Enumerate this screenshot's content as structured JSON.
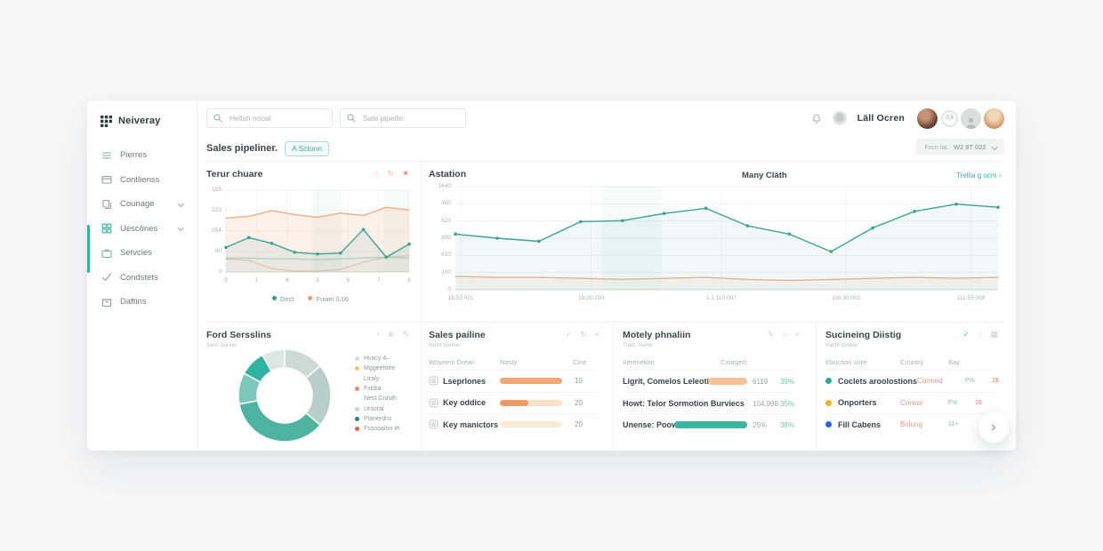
{
  "brand": {
    "name": "Neiveray"
  },
  "sidebar": {
    "items": [
      {
        "id": "pierres",
        "label": "Pierres",
        "icon": "menu",
        "chevron": false,
        "teal": false
      },
      {
        "id": "contlienss",
        "label": "Contlienss",
        "icon": "card",
        "chevron": false,
        "teal": false
      },
      {
        "id": "counage",
        "label": "Counage",
        "icon": "copy",
        "chevron": true,
        "teal": false
      },
      {
        "id": "uescones",
        "label": "Uescônes",
        "icon": "grid",
        "chevron": true,
        "teal": true
      },
      {
        "id": "setvcies",
        "label": "Setvcies",
        "icon": "briefcase",
        "chevron": false,
        "teal": false
      },
      {
        "id": "condstets",
        "label": "Condstets",
        "icon": "check",
        "chevron": false,
        "teal": false
      },
      {
        "id": "daftins",
        "label": "Daftins",
        "icon": "archive",
        "chevron": false,
        "teal": false
      }
    ]
  },
  "topbar": {
    "search_primary": "Hellsh nooal",
    "search_secondary": "Sale pipeilin",
    "user_name": "Läll Ocren",
    "meter_value": "0.9"
  },
  "header": {
    "title": "Sales pipeliner.",
    "badge": "A Sctonn",
    "filter_label": "Fern lat.",
    "filter_value": "W2 8T 022"
  },
  "cards": {
    "terur": {
      "title": "Terur chuare",
      "icons": [
        {
          "glyph": "○",
          "name": "circle-icon",
          "color": "#f3c1a0"
        },
        {
          "glyph": "↻",
          "name": "refresh-icon",
          "color": "#f3c1a0"
        },
        {
          "glyph": "☀",
          "name": "alert-icon",
          "color": "#e06a4f"
        }
      ],
      "legend": [
        {
          "label": "Dect",
          "color": "#2f9d8f"
        },
        {
          "label": "Fuwei 0,06",
          "color": "#ec9a6d"
        }
      ]
    },
    "astation": {
      "title": "Astation",
      "right_title": "Many Cläth",
      "link": "Trellia g ocm"
    },
    "ford": {
      "title": "Ford Sersslins",
      "subtitle": "Sels Gener",
      "icons": [
        {
          "glyph": "◔",
          "name": "comment-icon",
          "color": "#c9cfcd"
        },
        {
          "glyph": "⊕",
          "name": "add-icon",
          "color": "#c9cfcd"
        },
        {
          "glyph": "✎",
          "name": "edit-icon",
          "color": "#c9cfcd"
        }
      ],
      "legend": [
        {
          "label": "Hvacy 4–",
          "color": "#d4dcda"
        },
        {
          "label": "Mggeehtire",
          "color": "#f0c36b"
        },
        {
          "label": "Ltraly",
          "color": null
        },
        {
          "label": "Fxbba",
          "color": "#e58f63"
        },
        {
          "label": "Nest Crasth",
          "color": null
        },
        {
          "label": "Ursoral",
          "color": "#ccd7d4"
        },
        {
          "label": "Planerdns",
          "color": "#15897c"
        },
        {
          "label": "Fssooaloo #t",
          "color": "#e2654a"
        }
      ]
    },
    "sales": {
      "title": "Sales pailine",
      "subtitle": "Nelrt Geher",
      "icons": [
        {
          "glyph": "✓",
          "name": "check-icon",
          "color": "#c9cfcd"
        },
        {
          "glyph": "↻",
          "name": "refresh-icon",
          "color": "#c9cfcd"
        },
        {
          "glyph": "×",
          "name": "close-icon",
          "color": "#c9cfcd"
        }
      ],
      "headers": [
        "Woyeem Drean",
        "Nasty",
        "Cine"
      ],
      "rows": [
        {
          "name": "Lseprlones",
          "bar_pct": 100,
          "bar_fill": "#f2a876",
          "bar_track": "#f2a876",
          "value": "10"
        },
        {
          "name": "Key oddice",
          "bar_pct": 45,
          "bar_fill": "#ee9a62",
          "bar_track": "#f8e2c9",
          "value": "20"
        },
        {
          "name": "Key manictors",
          "bar_pct": 0,
          "bar_fill": "#ee9a62",
          "bar_track": "#f9ead6",
          "value": "20"
        }
      ]
    },
    "motely": {
      "title": "Motely phnaliin",
      "subtitle": "Tlatz hslne",
      "icons": [
        {
          "glyph": "✎",
          "name": "edit-icon",
          "color": "#c9cfcd"
        },
        {
          "glyph": "○",
          "name": "circle-icon",
          "color": "#c9cfcd"
        },
        {
          "glyph": "×",
          "name": "close-icon",
          "color": "#c9cfcd"
        }
      ],
      "headers": [
        "Irerenetion",
        "Coorgert"
      ],
      "rows": [
        {
          "name": "Ligrit, Comelos Leleotics",
          "pill_color": "#f5c397",
          "pill_width": 44,
          "value": "6119",
          "pct": "39%"
        },
        {
          "name": "Howt: Telor Sormotion Burviecs",
          "pill_color": null,
          "pill_width": 0,
          "value": "104,998",
          "pct": "35%"
        },
        {
          "name": "Unense: Poowers",
          "pill_color": "#3eb5a0",
          "pill_width": 82,
          "value": "25%",
          "pct": "38%"
        }
      ]
    },
    "sucining": {
      "title": "Sucineing Diistig",
      "subtitle": "Hatfli Grlew",
      "icons": [
        {
          "glyph": "✓",
          "name": "check-icon",
          "color": "#59c3a8"
        },
        {
          "glyph": "○",
          "name": "circle-icon",
          "color": "#c9cfcd"
        },
        {
          "glyph": "▦",
          "name": "grid-icon",
          "color": "#c9cfcd"
        }
      ],
      "headers": [
        "Ebuction uore",
        "Country",
        "Bay"
      ],
      "rows": [
        {
          "dot": "#2aa98c",
          "name": "Coclets aroolostions",
          "country": "Cormed",
          "pay": "P%",
          "extra": "1$"
        },
        {
          "dot": "#edb229",
          "name": "Onporters",
          "country": "Corwal",
          "pay": "F%",
          "extra": "16"
        },
        {
          "dot": "#2563e8",
          "name": "Fill Cabens",
          "country": "Bolung",
          "pay": "11+",
          "extra": ""
        }
      ]
    }
  },
  "fab": {
    "glyph": "›"
  },
  "chart_data": [
    {
      "id": "terur",
      "type": "line",
      "title": "Terur chuare",
      "y_tick_labels": [
        "155",
        "223",
        "254",
        "90",
        "0"
      ],
      "x_tick_labels": [
        "0",
        "1",
        "4",
        "3",
        "6",
        "7",
        "8"
      ],
      "legend_position": "bottom",
      "grid": true,
      "bands": [
        [
          0.47,
          0.63
        ],
        [
          0.86,
          1.0
        ]
      ],
      "series": [
        {
          "name": "Fuwei 0,06",
          "color": "#efae85",
          "fill": "rgba(242,166,120,0.16)",
          "markers": false,
          "values": [
            66,
            68,
            75,
            70,
            67,
            72,
            69,
            79,
            76
          ]
        },
        {
          "name": "ghost-orange",
          "color": "rgba(242,166,120,0.5)",
          "fill": null,
          "markers": false,
          "values": [
            16,
            14,
            4,
            1,
            1,
            3,
            12,
            18,
            20
          ]
        },
        {
          "name": "ghost-teal",
          "color": "rgba(70,170,155,0.35)",
          "fill": null,
          "markers": false,
          "values": [
            17,
            17,
            16,
            16,
            15,
            16,
            17,
            18,
            17
          ]
        },
        {
          "name": "Dect",
          "color": "#3ba393",
          "fill": "rgba(64,170,155,0.10)",
          "markers": true,
          "values": [
            30,
            42,
            35,
            24,
            22,
            23,
            52,
            18,
            34
          ]
        }
      ]
    },
    {
      "id": "astation",
      "type": "line",
      "title": "Astation",
      "y_tick_labels": [
        "1640",
        "300",
        "520",
        "800",
        "610",
        "100",
        "0"
      ],
      "x_tick_labels": [
        "15:53 001",
        "16:20 200",
        "1.1 110 007",
        "116 30 002",
        "111.55 009"
      ],
      "x_positions": [
        0.01,
        0.25,
        0.49,
        0.72,
        0.95
      ],
      "grid": true,
      "bands": [
        [
          0.27,
          0.38
        ]
      ],
      "series": [
        {
          "name": "secondary",
          "color": "#f0b48a",
          "fill": "rgba(240,180,138,0.10)",
          "markers": false,
          "values": [
            13,
            12,
            12,
            11,
            10,
            11,
            12,
            10,
            9,
            10,
            11,
            12,
            11,
            12
          ]
        },
        {
          "name": "main",
          "color": "#3ba393",
          "fill": "rgba(77,172,157,0.08)",
          "markers": true,
          "values": [
            54,
            50,
            47,
            66,
            67,
            74,
            79,
            62,
            54,
            37,
            60,
            76,
            83,
            80
          ]
        }
      ]
    },
    {
      "id": "ford-donut",
      "type": "pie",
      "title": "Ford Sersslins",
      "values": [
        14,
        22,
        36,
        11,
        9,
        8
      ],
      "colors": [
        "#ccd9d5",
        "#b7cfc9",
        "#4fb3a2",
        "#7bc9ba",
        "#2fb3a3",
        "#dbe7e3"
      ]
    }
  ]
}
